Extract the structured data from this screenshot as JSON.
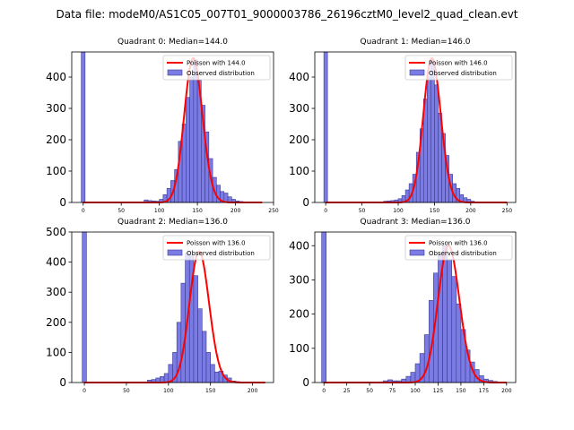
{
  "figure": {
    "title": "Data file: modeM0/AS1C05_007T01_9000003786_26196cztM0_level2_quad_clean.evt"
  },
  "colors": {
    "bar_fill": "#7b7be6",
    "bar_edge": "#3b3b8c",
    "fit_line": "#ff0000",
    "axis": "#000000"
  },
  "chart_data": [
    {
      "type": "bar",
      "title": "Quadrant 0: Median=144.0",
      "xlim": [
        -15,
        250
      ],
      "ylim": [
        0,
        480
      ],
      "xticks": [
        0,
        50,
        100,
        150,
        200,
        250
      ],
      "yticks": [
        0,
        100,
        200,
        300,
        400
      ],
      "legend": [
        "Poisson with 144.0",
        "Observed distribution"
      ],
      "legend_position": "upper right",
      "median": 144.0,
      "bin_width": 5,
      "zero_bar": {
        "x": 0,
        "value": 480
      },
      "bins_start": 75,
      "counts": [
        2,
        8,
        6,
        5,
        4,
        10,
        25,
        45,
        70,
        105,
        195,
        250,
        335,
        400,
        455,
        390,
        310,
        225,
        140,
        80,
        55,
        35,
        30,
        18,
        10,
        5,
        3,
        2,
        1
      ],
      "fit_peak": 460,
      "fit_line_x_range": [
        0,
        235
      ]
    },
    {
      "type": "bar",
      "title": "Quadrant 1: Median=146.0",
      "xlim": [
        -15,
        262
      ],
      "ylim": [
        0,
        480
      ],
      "xticks": [
        0,
        50,
        100,
        150,
        200,
        250
      ],
      "yticks": [
        0,
        100,
        200,
        300,
        400
      ],
      "legend": [
        "Poisson with 146.0",
        "Observed distribution"
      ],
      "legend_position": "upper right",
      "median": 146.0,
      "bin_width": 5,
      "zero_bar": {
        "x": 0,
        "value": 480
      },
      "bins_start": 75,
      "counts": [
        2,
        4,
        5,
        6,
        8,
        12,
        22,
        40,
        60,
        90,
        160,
        235,
        330,
        400,
        455,
        375,
        285,
        220,
        150,
        90,
        60,
        45,
        25,
        15,
        10,
        4,
        2
      ],
      "fit_peak": 460,
      "fit_line_x_range": [
        0,
        250
      ]
    },
    {
      "type": "bar",
      "title": "Quadrant 2: Median=136.0",
      "xlim": [
        -15,
        225
      ],
      "ylim": [
        0,
        500
      ],
      "xticks": [
        0,
        50,
        100,
        150,
        200
      ],
      "yticks": [
        0,
        100,
        200,
        300,
        400,
        500
      ],
      "legend": [
        "Poisson with 136.0",
        "Observed distribution"
      ],
      "legend_position": "upper right",
      "median": 136.0,
      "bin_width": 5,
      "zero_bar": {
        "x": 0,
        "value": 500
      },
      "bins_start": 70,
      "counts": [
        2,
        8,
        10,
        15,
        20,
        30,
        60,
        100,
        200,
        330,
        430,
        420,
        355,
        245,
        170,
        100,
        60,
        35,
        38,
        25,
        15,
        5,
        3,
        1
      ],
      "fit_peak": 435,
      "fit_line_x_range": [
        0,
        215
      ]
    },
    {
      "type": "bar",
      "title": "Quadrant 3: Median=136.0",
      "xlim": [
        -10,
        210
      ],
      "ylim": [
        0,
        440
      ],
      "xticks": [
        0,
        25,
        50,
        75,
        100,
        125,
        150,
        175,
        200
      ],
      "yticks": [
        0,
        100,
        200,
        300,
        400
      ],
      "legend": [
        "Poisson with 136.0",
        "Observed distribution"
      ],
      "legend_position": "upper right",
      "median": 136.0,
      "bin_width": 5,
      "zero_bar": {
        "x": 0,
        "value": 440
      },
      "bins_start": 60,
      "counts": [
        2,
        5,
        8,
        5,
        5,
        10,
        18,
        30,
        55,
        85,
        140,
        240,
        320,
        375,
        400,
        360,
        310,
        230,
        155,
        95,
        60,
        38,
        20,
        10,
        6,
        3,
        1,
        0
      ],
      "fit_peak": 400,
      "fit_line_x_range": [
        0,
        200
      ]
    }
  ]
}
